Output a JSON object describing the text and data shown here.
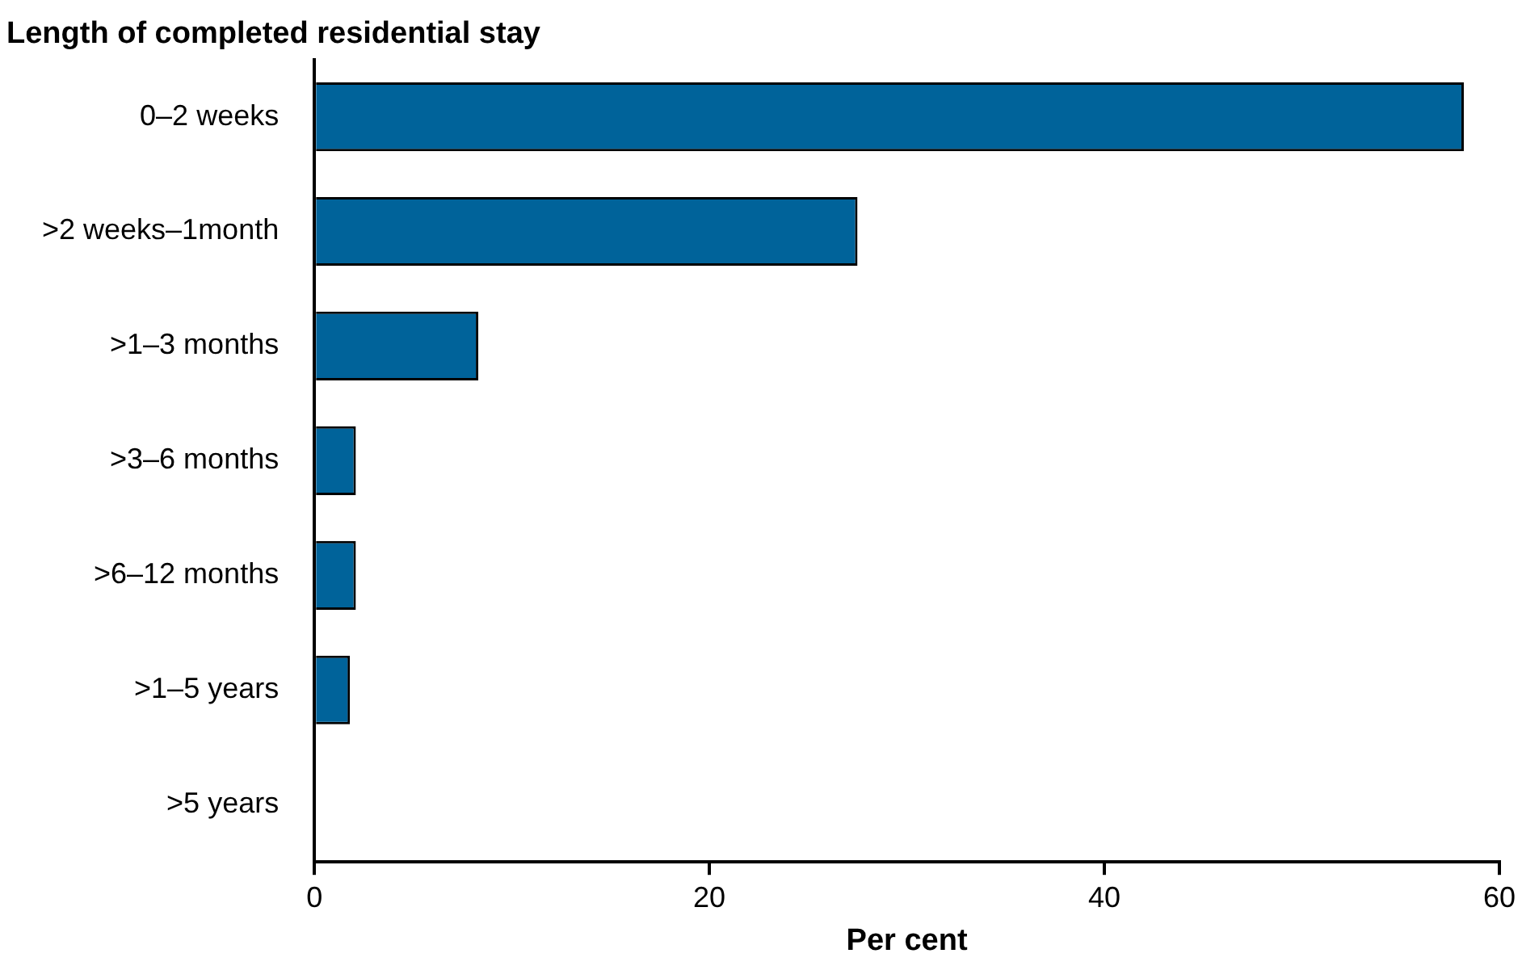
{
  "chart_data": {
    "type": "bar",
    "orientation": "horizontal",
    "title": "Length of completed residential stay",
    "categories": [
      "0–2 weeks",
      ">2 weeks–1month",
      ">1–3 months",
      ">3–6 months",
      ">6–12 months",
      ">1–5 years",
      ">5 years"
    ],
    "values": [
      58.2,
      27.5,
      8.3,
      2.1,
      2.1,
      1.8,
      0
    ],
    "color": "#00639a",
    "xlabel": "Per cent",
    "xlim": [
      0,
      60
    ],
    "xticks": [
      0,
      20,
      40,
      60
    ],
    "grid": false,
    "legend": false
  }
}
